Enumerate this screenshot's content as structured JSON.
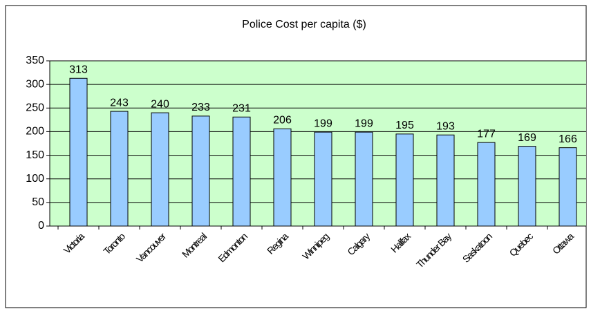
{
  "chart_data": {
    "type": "bar",
    "title": "Police Cost per capita ($)",
    "categories": [
      "Victoria",
      "Toronto",
      "Vancouver",
      "Montreal",
      "Edmonton",
      "Regina",
      "Winnipeg",
      "Calgary",
      "Halifax",
      "Thunder Bay",
      "Saskatoon",
      "Quebec",
      "Ottawa"
    ],
    "values": [
      313,
      243,
      240,
      233,
      231,
      206,
      199,
      199,
      195,
      193,
      177,
      169,
      166
    ],
    "color": "#99ccff",
    "ylim": [
      0,
      350
    ],
    "yticks": [
      0,
      50,
      100,
      150,
      200,
      250,
      300,
      350
    ],
    "grid": true
  }
}
